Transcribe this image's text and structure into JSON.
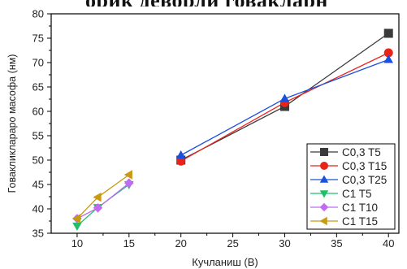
{
  "chart_data": {
    "type": "line",
    "title": "",
    "xlabel": "Кучланиш (В)",
    "ylabel": "Говакликлараро масофа (нм)",
    "xlim": [
      7.5,
      41
    ],
    "ylim": [
      35,
      80
    ],
    "x_ticks": [
      "10",
      "15",
      "20",
      "25",
      "30",
      "35",
      "40"
    ],
    "y_ticks": [
      "35",
      "40",
      "45",
      "50",
      "55",
      "60",
      "65",
      "70",
      "75",
      "80"
    ],
    "grid": false,
    "legend_position": "bottom-right",
    "series": [
      {
        "name": "C0,3 T5",
        "color": "#3a3a3a",
        "marker": "square",
        "x": [
          20,
          30,
          40
        ],
        "y": [
          50.0,
          61.0,
          76.0
        ]
      },
      {
        "name": "C0,3 T15",
        "color": "#e8231a",
        "marker": "circle",
        "x": [
          20,
          30,
          40
        ],
        "y": [
          49.8,
          61.8,
          72.0
        ]
      },
      {
        "name": "C0,3 T25",
        "color": "#1a4fe0",
        "marker": "triangle-up",
        "x": [
          20,
          30,
          40
        ],
        "y": [
          51.0,
          62.6,
          70.6
        ]
      },
      {
        "name": "C1 T5",
        "color": "#1fbf6a",
        "marker": "triangle-down",
        "x": [
          10,
          12,
          15
        ],
        "y": [
          36.5,
          40.3,
          45.0
        ]
      },
      {
        "name": "C1 T10",
        "color": "#c16cf0",
        "marker": "diamond",
        "x": [
          10,
          12,
          15
        ],
        "y": [
          38.0,
          40.2,
          45.3
        ]
      },
      {
        "name": "C1 T15",
        "color": "#c79a12",
        "marker": "triangle-left",
        "x": [
          10,
          12,
          15
        ],
        "y": [
          38.0,
          42.4,
          47.0
        ]
      }
    ]
  }
}
